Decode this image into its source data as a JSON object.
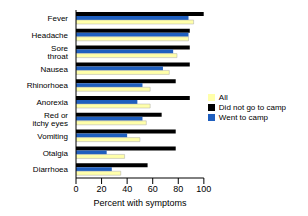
{
  "chart_data": {
    "type": "bar",
    "orientation": "horizontal",
    "x_label": "Percent with symptoms",
    "categories": [
      "Fever",
      "Headache",
      "Sore throat",
      "Nausea",
      "Rhinorhoea",
      "Anorexia",
      "Red or itchy eyes",
      "Vomiting",
      "Otalgia",
      "Diarrhoea"
    ],
    "series": [
      {
        "name": "Did not go to camp",
        "color": "#000000",
        "values": [
          100,
          89,
          89,
          89,
          78,
          89,
          67,
          78,
          78,
          56
        ]
      },
      {
        "name": "Went to camp",
        "color": "#1f5fbf",
        "values": [
          88,
          88,
          76,
          68,
          52,
          48,
          52,
          40,
          24,
          28
        ]
      },
      {
        "name": "All",
        "color": "#ffffaa",
        "values": [
          92,
          88,
          79,
          73,
          58,
          58,
          55,
          50,
          38,
          35
        ]
      }
    ],
    "xlim": [
      0,
      100
    ],
    "xticks": [
      0,
      20,
      40,
      60,
      80,
      100
    ],
    "grid": false,
    "legend": "right"
  }
}
